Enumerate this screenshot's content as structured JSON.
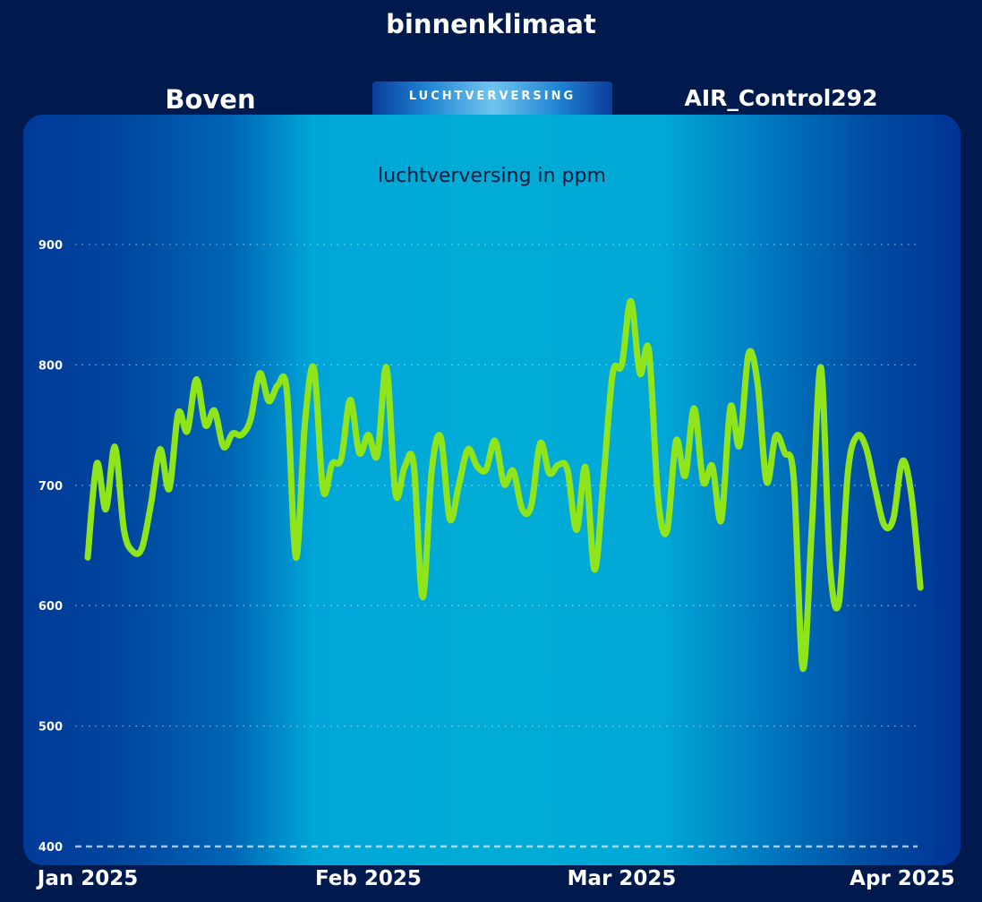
{
  "page": {
    "title": "binnenklimaat",
    "location": "Boven",
    "device": "AIR_Control292",
    "tab_label": "LUCHTVERVERSING"
  },
  "colors": {
    "background": "#001a4d",
    "line": "#8fe51a",
    "gridline": "#d6ecff"
  },
  "chart_data": {
    "type": "line",
    "title": "luchtverversing in ppm",
    "xlabel": "",
    "ylabel": "",
    "ylim": [
      400,
      900
    ],
    "yticks": [
      900,
      800,
      700,
      600,
      500,
      400
    ],
    "xlim": [
      "2025-01-01",
      "2025-04-01"
    ],
    "xticks": [
      {
        "date": "2025-01-01",
        "label": "Jan 2025"
      },
      {
        "date": "2025-02-01",
        "label": "Feb 2025"
      },
      {
        "date": "2025-03-01",
        "label": "Mar 2025"
      },
      {
        "date": "2025-04-01",
        "label": "Apr 2025"
      }
    ],
    "grid": true,
    "series": [
      {
        "values": [
          [
            "2025-01-01",
            640
          ],
          [
            "2025-01-02",
            718
          ],
          [
            "2025-01-03",
            680
          ],
          [
            "2025-01-04",
            732
          ],
          [
            "2025-01-05",
            663
          ],
          [
            "2025-01-06",
            645
          ],
          [
            "2025-01-07",
            648
          ],
          [
            "2025-01-08",
            685
          ],
          [
            "2025-01-09",
            730
          ],
          [
            "2025-01-10",
            697
          ],
          [
            "2025-01-11",
            760
          ],
          [
            "2025-01-12",
            745
          ],
          [
            "2025-01-13",
            788
          ],
          [
            "2025-01-14",
            750
          ],
          [
            "2025-01-15",
            762
          ],
          [
            "2025-01-16",
            732
          ],
          [
            "2025-01-17",
            743
          ],
          [
            "2025-01-18",
            742
          ],
          [
            "2025-01-19",
            755
          ],
          [
            "2025-01-20",
            793
          ],
          [
            "2025-01-21",
            770
          ],
          [
            "2025-01-22",
            783
          ],
          [
            "2025-01-23",
            778
          ],
          [
            "2025-01-24",
            640
          ],
          [
            "2025-01-25",
            752
          ],
          [
            "2025-01-26",
            797
          ],
          [
            "2025-01-27",
            696
          ],
          [
            "2025-01-28",
            718
          ],
          [
            "2025-01-29",
            722
          ],
          [
            "2025-01-30",
            771
          ],
          [
            "2025-01-31",
            727
          ],
          [
            "2025-02-01",
            742
          ],
          [
            "2025-02-02",
            725
          ],
          [
            "2025-02-03",
            798
          ],
          [
            "2025-02-04",
            693
          ],
          [
            "2025-02-05",
            715
          ],
          [
            "2025-02-06",
            718
          ],
          [
            "2025-02-07",
            607
          ],
          [
            "2025-02-08",
            712
          ],
          [
            "2025-02-09",
            740
          ],
          [
            "2025-02-10",
            672
          ],
          [
            "2025-02-11",
            700
          ],
          [
            "2025-02-12",
            730
          ],
          [
            "2025-02-13",
            716
          ],
          [
            "2025-02-14",
            713
          ],
          [
            "2025-02-15",
            737
          ],
          [
            "2025-02-16",
            701
          ],
          [
            "2025-02-17",
            712
          ],
          [
            "2025-02-18",
            680
          ],
          [
            "2025-02-19",
            683
          ],
          [
            "2025-02-20",
            735
          ],
          [
            "2025-02-21",
            710
          ],
          [
            "2025-02-22",
            717
          ],
          [
            "2025-02-23",
            713
          ],
          [
            "2025-02-24",
            663
          ],
          [
            "2025-02-25",
            715
          ],
          [
            "2025-02-26",
            630
          ],
          [
            "2025-02-27",
            707
          ],
          [
            "2025-02-28",
            793
          ],
          [
            "2025-03-01",
            800
          ],
          [
            "2025-03-02",
            853
          ],
          [
            "2025-03-03",
            793
          ],
          [
            "2025-03-04",
            812
          ],
          [
            "2025-03-05",
            690
          ],
          [
            "2025-03-06",
            662
          ],
          [
            "2025-03-07",
            737
          ],
          [
            "2025-03-08",
            708
          ],
          [
            "2025-03-09",
            764
          ],
          [
            "2025-03-10",
            703
          ],
          [
            "2025-03-11",
            716
          ],
          [
            "2025-03-12",
            671
          ],
          [
            "2025-03-13",
            765
          ],
          [
            "2025-03-14",
            733
          ],
          [
            "2025-03-15",
            809
          ],
          [
            "2025-03-16",
            785
          ],
          [
            "2025-03-17",
            703
          ],
          [
            "2025-03-18",
            741
          ],
          [
            "2025-03-19",
            727
          ],
          [
            "2025-03-20",
            706
          ],
          [
            "2025-03-21",
            548
          ],
          [
            "2025-03-22",
            665
          ],
          [
            "2025-03-23",
            798
          ],
          [
            "2025-03-24",
            634
          ],
          [
            "2025-03-25",
            603
          ],
          [
            "2025-03-26",
            712
          ],
          [
            "2025-03-27",
            741
          ],
          [
            "2025-03-28",
            731
          ],
          [
            "2025-03-29",
            697
          ],
          [
            "2025-03-30",
            667
          ],
          [
            "2025-03-31",
            672
          ],
          [
            "2025-04-01",
            720
          ],
          [
            "2025-04-02",
            692
          ],
          [
            "2025-04-03",
            615
          ]
        ]
      }
    ]
  }
}
